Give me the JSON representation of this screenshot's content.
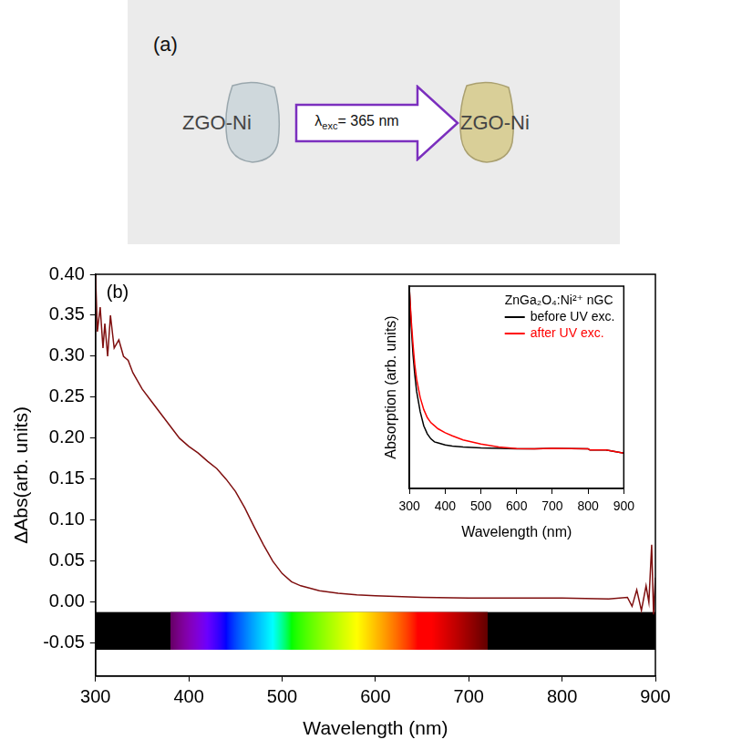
{
  "panel_a": {
    "label": "(a)",
    "samples": [
      "ZGO-Ni",
      "ZGO-Ni"
    ],
    "arrow_label": {
      "symbol": "λ",
      "subscript": "exc",
      "text": "= 365 nm"
    }
  },
  "chart_data": [
    {
      "type": "line",
      "panel_label": "(b)",
      "x_label": "Wavelength (nm)",
      "y_label": "ΔAbs(arb. units)",
      "xlim": [
        300,
        900
      ],
      "xticks": [
        300,
        400,
        500,
        600,
        700,
        800,
        900
      ],
      "ylim": [
        -0.09,
        0.4
      ],
      "yticks": [
        -0.05,
        {
          "value": 0,
          "label": "0.00"
        },
        0.05,
        {
          "value": 0.1,
          "label": "0.10"
        },
        0.15,
        {
          "value": 0.2,
          "label": "0.20"
        },
        0.25,
        {
          "value": 0.3,
          "label": "0.30"
        },
        0.35,
        {
          "value": 0.4,
          "label": "0.40"
        }
      ],
      "grid": false,
      "color": "#7f0f0f",
      "spectrum_band": {
        "x": [
          380,
          720
        ],
        "y": [
          -0.058,
          -0.012
        ]
      },
      "x": [
        300,
        302,
        305,
        308,
        310,
        313,
        316,
        320,
        325,
        330,
        335,
        340,
        345,
        350,
        360,
        370,
        380,
        390,
        400,
        410,
        420,
        430,
        440,
        450,
        460,
        470,
        480,
        490,
        500,
        510,
        520,
        540,
        560,
        580,
        600,
        650,
        700,
        750,
        800,
        850,
        870,
        875,
        880,
        885,
        890,
        893,
        896,
        898,
        900
      ],
      "values": [
        0.4,
        0.33,
        0.36,
        0.31,
        0.34,
        0.3,
        0.35,
        0.31,
        0.32,
        0.3,
        0.295,
        0.28,
        0.27,
        0.26,
        0.245,
        0.23,
        0.215,
        0.2,
        0.19,
        0.182,
        0.172,
        0.163,
        0.15,
        0.135,
        0.115,
        0.092,
        0.07,
        0.05,
        0.035,
        0.025,
        0.02,
        0.014,
        0.011,
        0.009,
        0.008,
        0.006,
        0.005,
        0.005,
        0.005,
        0.004,
        0.006,
        -0.005,
        0.015,
        -0.01,
        0.02,
        0.0,
        0.07,
        -0.015,
        0.03
      ]
    },
    {
      "type": "line",
      "x_label": "Wavelength (nm)",
      "y_label": "Absorption (arb. units)",
      "xlim": [
        300,
        900
      ],
      "xticks": [
        300,
        400,
        500,
        600,
        700,
        800,
        900
      ],
      "ylim": [
        0,
        1
      ],
      "tick_labels": "x",
      "grid": false,
      "legend": "upper right",
      "legend_title": "ZnGa₂O₄:Ni²⁺ nGC",
      "x": [
        300,
        305,
        310,
        315,
        320,
        330,
        340,
        350,
        360,
        370,
        380,
        400,
        420,
        450,
        500,
        550,
        600,
        650,
        700,
        750,
        800,
        805,
        850,
        900
      ],
      "series": [
        {
          "name": "before UV exc.",
          "color": "#000000",
          "values": [
            0.98,
            0.8,
            0.66,
            0.56,
            0.48,
            0.38,
            0.31,
            0.27,
            0.245,
            0.23,
            0.225,
            0.215,
            0.21,
            0.205,
            0.2,
            0.198,
            0.196,
            0.196,
            0.198,
            0.197,
            0.196,
            0.19,
            0.19,
            0.175
          ]
        },
        {
          "name": "after UV exc.",
          "color": "#ff0000",
          "values": [
            0.98,
            0.83,
            0.71,
            0.61,
            0.54,
            0.45,
            0.39,
            0.35,
            0.325,
            0.31,
            0.295,
            0.275,
            0.26,
            0.24,
            0.22,
            0.205,
            0.197,
            0.196,
            0.198,
            0.197,
            0.196,
            0.19,
            0.19,
            0.175
          ]
        }
      ]
    }
  ]
}
